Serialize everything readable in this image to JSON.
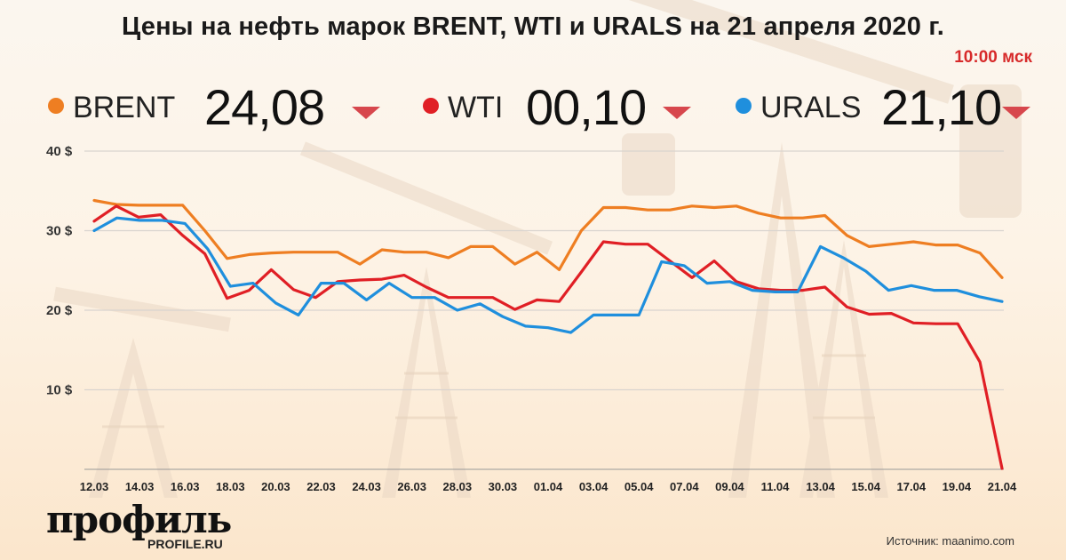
{
  "header": {
    "title": "Цены на нефть марок BRENT, WTI и URALS на 21 апреля 2020 г.",
    "time": "10:00 мск"
  },
  "tickers": [
    {
      "name": "BRENT",
      "price": "24,08",
      "color": "#ee7e22",
      "trend": "down"
    },
    {
      "name": "WTI",
      "price": "00,10",
      "color": "#e01f25",
      "trend": "down"
    },
    {
      "name": "URALS",
      "price": "21,10",
      "color": "#1f8fdd",
      "trend": "down"
    }
  ],
  "colors": {
    "arrow": "#d7474d",
    "grid": "#d9d4cf"
  },
  "chart_data": {
    "type": "line",
    "ylim": [
      0,
      40
    ],
    "y_ticks": [
      {
        "value": 10,
        "label": "10 $"
      },
      {
        "value": 20,
        "label": "20 $"
      },
      {
        "value": 30,
        "label": "30 $"
      },
      {
        "value": 40,
        "label": "40 $"
      }
    ],
    "x_ticks": [
      "12.03",
      "14.03",
      "16.03",
      "18.03",
      "20.03",
      "22.03",
      "24.03",
      "26.03",
      "28.03",
      "30.03",
      "01.04",
      "03.04",
      "05.04",
      "07.04",
      "09.04",
      "11.04",
      "13.04",
      "15.04",
      "17.04",
      "19.04",
      "21.04"
    ],
    "grid": true,
    "series": [
      {
        "name": "BRENT",
        "color": "#ee7e22",
        "values": [
          33.8,
          33.3,
          33.2,
          33.2,
          33.2,
          30.0,
          26.5,
          27.0,
          27.2,
          27.3,
          27.3,
          27.3,
          25.8,
          27.6,
          27.3,
          27.3,
          26.6,
          28.0,
          28.0,
          25.8,
          27.3,
          25.1,
          30.0,
          32.9,
          32.9,
          32.6,
          32.6,
          33.1,
          32.9,
          33.1,
          32.2,
          31.6,
          31.6,
          31.9,
          29.4,
          28.0,
          28.3,
          28.6,
          28.2,
          28.2,
          27.2,
          24.1
        ]
      },
      {
        "name": "WTI",
        "color": "#e01f25",
        "values": [
          31.2,
          33.1,
          31.7,
          32.0,
          29.4,
          27.1,
          21.5,
          22.5,
          25.1,
          22.6,
          21.6,
          23.6,
          23.8,
          23.9,
          24.4,
          22.9,
          21.6,
          21.6,
          21.6,
          20.1,
          21.3,
          21.1,
          24.8,
          28.6,
          28.3,
          28.3,
          26.2,
          24.1,
          26.2,
          23.6,
          22.7,
          22.5,
          22.5,
          22.9,
          20.4,
          19.5,
          19.6,
          18.4,
          18.3,
          18.3,
          13.5,
          0.1
        ]
      },
      {
        "name": "URALS",
        "color": "#1f8fdd",
        "values": [
          30.0,
          31.6,
          31.3,
          31.3,
          30.9,
          27.7,
          23.0,
          23.4,
          20.9,
          19.4,
          23.4,
          23.4,
          21.3,
          23.4,
          21.6,
          21.6,
          20.0,
          20.8,
          19.2,
          18.0,
          17.8,
          17.2,
          19.4,
          19.4,
          19.4,
          26.1,
          25.6,
          23.4,
          23.6,
          22.5,
          22.3,
          22.3,
          28.0,
          26.6,
          24.9,
          22.5,
          23.1,
          22.5,
          22.5,
          21.7,
          21.1
        ]
      }
    ]
  },
  "branding": {
    "logo": "профиль",
    "logo_url": "PROFILE.RU"
  },
  "footer": {
    "source": "Источник: maanimo.com"
  }
}
